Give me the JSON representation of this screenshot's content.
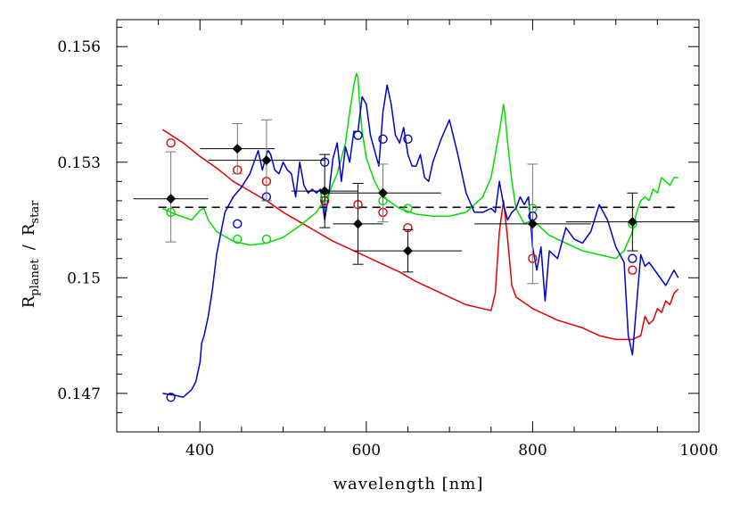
{
  "chart_data": {
    "type": "scatter",
    "xlabel": "wavelength  [nm]",
    "ylabel_main": "R",
    "ylabel_sub1": "planet",
    "ylabel_sep": "/",
    "ylabel_main2": "R",
    "ylabel_sub2": "star",
    "xlim": [
      300,
      1000
    ],
    "ylim": [
      0.146,
      0.1567
    ],
    "xticks_major": [
      400,
      600,
      800,
      1000
    ],
    "xtick_labels": [
      "400",
      "600",
      "800",
      "1000"
    ],
    "yticks_major": [
      0.147,
      0.15,
      0.153,
      0.156
    ],
    "ytick_labels": [
      "0.147",
      "0.15",
      "0.153",
      "0.156"
    ],
    "reference_level": 0.15183,
    "colors": {
      "red": "#e00000",
      "green": "#00dd00",
      "blue": "#0000cc",
      "black": "#000000",
      "gray": "#777777"
    },
    "series": [
      {
        "name": "red model",
        "color": "red",
        "x": [
          355,
          380,
          400,
          420,
          440,
          460,
          480,
          500,
          520,
          540,
          560,
          575,
          585,
          590,
          600,
          620,
          640,
          660,
          680,
          700,
          720,
          740,
          750,
          755,
          760,
          765,
          770,
          775,
          780,
          800,
          830,
          860,
          880,
          900,
          920,
          930,
          935,
          940,
          945,
          950,
          955,
          960,
          965,
          970,
          975
        ],
        "y": [
          0.15385,
          0.1535,
          0.15315,
          0.15285,
          0.1525,
          0.15225,
          0.152,
          0.1517,
          0.15145,
          0.1512,
          0.15095,
          0.1508,
          0.1507,
          0.15065,
          0.15055,
          0.15035,
          0.15015,
          0.1499,
          0.1497,
          0.1495,
          0.1493,
          0.1492,
          0.14915,
          0.1496,
          0.1512,
          0.152,
          0.151,
          0.1498,
          0.1495,
          0.1492,
          0.1489,
          0.1487,
          0.1485,
          0.1484,
          0.1484,
          0.1485,
          0.149,
          0.1488,
          0.1489,
          0.1492,
          0.1491,
          0.1494,
          0.1493,
          0.1496,
          0.1497
        ]
      },
      {
        "name": "green model",
        "color": "green",
        "x": [
          355,
          370,
          390,
          400,
          405,
          410,
          420,
          440,
          460,
          480,
          500,
          520,
          540,
          555,
          565,
          575,
          580,
          585,
          588,
          590,
          592,
          595,
          600,
          610,
          620,
          640,
          660,
          680,
          700,
          720,
          740,
          750,
          755,
          760,
          763,
          765,
          767,
          770,
          775,
          780,
          790,
          800,
          820,
          840,
          860,
          880,
          900,
          910,
          920,
          925,
          930,
          935,
          940,
          945,
          950,
          955,
          960,
          965,
          970,
          975
        ],
        "y": [
          0.1518,
          0.15165,
          0.1515,
          0.15175,
          0.1518,
          0.1515,
          0.1512,
          0.15095,
          0.15085,
          0.1509,
          0.15105,
          0.15135,
          0.1517,
          0.1522,
          0.1527,
          0.1535,
          0.1543,
          0.155,
          0.1553,
          0.1552,
          0.1545,
          0.1538,
          0.1531,
          0.1525,
          0.1521,
          0.1518,
          0.15165,
          0.1516,
          0.1516,
          0.1517,
          0.1521,
          0.1526,
          0.1532,
          0.1538,
          0.1542,
          0.1545,
          0.1542,
          0.1535,
          0.1525,
          0.1518,
          0.1514,
          0.1515,
          0.1511,
          0.1509,
          0.1507,
          0.1506,
          0.1505,
          0.1507,
          0.1512,
          0.1517,
          0.152,
          0.1521,
          0.152,
          0.1523,
          0.1522,
          0.1526,
          0.1525,
          0.1524,
          0.1526,
          0.1526
        ]
      },
      {
        "name": "blue model",
        "color": "blue",
        "x": [
          355,
          370,
          380,
          390,
          395,
          400,
          402,
          405,
          410,
          415,
          420,
          430,
          440,
          450,
          460,
          470,
          475,
          480,
          482,
          485,
          490,
          495,
          500,
          505,
          510,
          515,
          520,
          525,
          530,
          535,
          540,
          545,
          550,
          555,
          560,
          565,
          570,
          575,
          580,
          585,
          590,
          595,
          600,
          605,
          610,
          615,
          620,
          625,
          630,
          635,
          640,
          645,
          650,
          655,
          660,
          665,
          670,
          675,
          680,
          690,
          700,
          710,
          720,
          730,
          740,
          750,
          755,
          760,
          765,
          770,
          775,
          780,
          785,
          790,
          795,
          800,
          805,
          810,
          815,
          820,
          830,
          840,
          850,
          860,
          870,
          880,
          890,
          900,
          910,
          915,
          920,
          925,
          930,
          935,
          940,
          950,
          960,
          970,
          975
        ],
        "y": [
          0.147,
          0.14695,
          0.1469,
          0.1471,
          0.1473,
          0.1478,
          0.1483,
          0.1485,
          0.149,
          0.1497,
          0.1506,
          0.1517,
          0.1521,
          0.15235,
          0.1527,
          0.1533,
          0.1528,
          0.1532,
          0.1533,
          0.1532,
          0.1528,
          0.1527,
          0.153,
          0.1528,
          0.1527,
          0.1521,
          0.153,
          0.1524,
          0.1522,
          0.1523,
          0.1522,
          0.1523,
          0.1515,
          0.1522,
          0.1531,
          0.1535,
          0.1525,
          0.1534,
          0.153,
          0.1538,
          0.1538,
          0.1547,
          0.1545,
          0.1537,
          0.1533,
          0.1529,
          0.1543,
          0.155,
          0.1545,
          0.1537,
          0.1535,
          0.1539,
          0.1532,
          0.1529,
          0.1529,
          0.1532,
          0.1526,
          0.1525,
          0.153,
          0.1536,
          0.1541,
          0.1532,
          0.1522,
          0.1517,
          0.1517,
          0.1518,
          0.1517,
          0.1525,
          0.1519,
          0.1515,
          0.1517,
          0.1518,
          0.1521,
          0.1519,
          0.1521,
          0.1508,
          0.1502,
          0.1508,
          0.1494,
          0.1507,
          0.1505,
          0.1513,
          0.151,
          0.1509,
          0.1512,
          0.1519,
          0.1515,
          0.1508,
          0.1504,
          0.1485,
          0.148,
          0.1493,
          0.1506,
          0.1503,
          0.1504,
          0.1501,
          0.1498,
          0.1502,
          0.15
        ]
      }
    ],
    "open_circles": [
      {
        "x": 365,
        "y": 0.1535,
        "color": "red"
      },
      {
        "x": 445,
        "y": 0.1528,
        "color": "red"
      },
      {
        "x": 480,
        "y": 0.1525,
        "color": "red"
      },
      {
        "x": 550,
        "y": 0.152,
        "color": "red"
      },
      {
        "x": 590,
        "y": 0.1519,
        "color": "red"
      },
      {
        "x": 620,
        "y": 0.1517,
        "color": "red"
      },
      {
        "x": 650,
        "y": 0.1513,
        "color": "red"
      },
      {
        "x": 800,
        "y": 0.1505,
        "color": "red"
      },
      {
        "x": 920,
        "y": 0.1502,
        "color": "red"
      },
      {
        "x": 365,
        "y": 0.1517,
        "color": "green"
      },
      {
        "x": 445,
        "y": 0.151,
        "color": "green"
      },
      {
        "x": 480,
        "y": 0.151,
        "color": "green"
      },
      {
        "x": 550,
        "y": 0.1521,
        "color": "green"
      },
      {
        "x": 590,
        "y": 0.1537,
        "color": "green"
      },
      {
        "x": 620,
        "y": 0.152,
        "color": "green"
      },
      {
        "x": 650,
        "y": 0.1518,
        "color": "green"
      },
      {
        "x": 800,
        "y": 0.1518,
        "color": "green"
      },
      {
        "x": 920,
        "y": 0.1514,
        "color": "green"
      },
      {
        "x": 365,
        "y": 0.1469,
        "color": "blue"
      },
      {
        "x": 445,
        "y": 0.1514,
        "color": "blue"
      },
      {
        "x": 480,
        "y": 0.1521,
        "color": "blue"
      },
      {
        "x": 550,
        "y": 0.153,
        "color": "blue"
      },
      {
        "x": 590,
        "y": 0.1537,
        "color": "blue"
      },
      {
        "x": 620,
        "y": 0.1536,
        "color": "blue"
      },
      {
        "x": 650,
        "y": 0.1536,
        "color": "blue"
      },
      {
        "x": 800,
        "y": 0.1516,
        "color": "blue"
      },
      {
        "x": 920,
        "y": 0.1505,
        "color": "blue"
      }
    ],
    "measurements": [
      {
        "x": 365,
        "y": 0.15205,
        "xerr": 45,
        "yerr_lo": 0.00112,
        "yerr_hi": 0.00122,
        "ecolor": "gray"
      },
      {
        "x": 445,
        "y": 0.15335,
        "xerr": 45,
        "yerr_lo": 0.00065,
        "yerr_hi": 0.00065,
        "ecolor": "gray"
      },
      {
        "x": 480,
        "y": 0.15305,
        "xerr": 70,
        "yerr_lo": 0.00105,
        "yerr_hi": 0.00105,
        "ecolor": "gray"
      },
      {
        "x": 550,
        "y": 0.15225,
        "xerr": 40,
        "yerr_lo": 0.00095,
        "yerr_hi": 0.00095,
        "ecolor": "black"
      },
      {
        "x": 590,
        "y": 0.1514,
        "xerr": 30,
        "yerr_lo": 0.00105,
        "yerr_hi": 0.00105,
        "ecolor": "black"
      },
      {
        "x": 620,
        "y": 0.1522,
        "xerr": 70,
        "yerr_lo": 0.00075,
        "yerr_hi": 0.00075,
        "ecolor": "gray"
      },
      {
        "x": 650,
        "y": 0.1507,
        "xerr": 65,
        "yerr_lo": 0.00055,
        "yerr_hi": 0.00055,
        "ecolor": "black"
      },
      {
        "x": 800,
        "y": 0.1514,
        "xerr": 70,
        "yerr_lo": 0.00155,
        "yerr_hi": 0.00155,
        "ecolor": "gray"
      },
      {
        "x": 920,
        "y": 0.15145,
        "xerr": 80,
        "yerr_lo": 0.00075,
        "yerr_hi": 0.00075,
        "ecolor": "black"
      }
    ]
  }
}
